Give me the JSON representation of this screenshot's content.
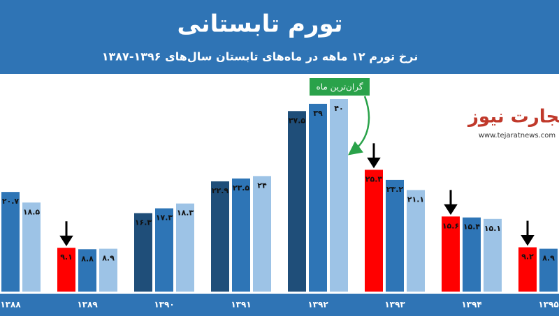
{
  "chart_data": {
    "type": "bar",
    "title": "تورم تابستانی",
    "subtitle": "نرخ تورم ۱۲ ماهه در ماه‌های تابستان سال‌های ۱۳۹۶-۱۳۸۷",
    "annotation": "گران‌ترین ماه",
    "logo": "تجارت نیوز",
    "logo_url": "www.tejaratnews.com",
    "categories": [
      "۱۳۸۸",
      "۱۳۸۹",
      "۱۳۹۰",
      "۱۳۹۱",
      "۱۳۹۲",
      "۱۳۹۳",
      "۱۳۹۴",
      "۱۳۹۵"
    ],
    "ylim": [
      0,
      45
    ],
    "series": [
      {
        "color": "#1f4e79",
        "colors": [
          null,
          "#ff0000",
          "#1f4e79",
          "#1f4e79",
          "#1f4e79",
          "#ff0000",
          "#ff0000",
          "#ff0000"
        ],
        "values": [
          null,
          9.1,
          16.3,
          22.9,
          37.5,
          25.3,
          15.6,
          9.2
        ],
        "value_labels": [
          null,
          "۹.۱",
          "۱۶.۳",
          "۲۲.۹",
          "۳۷.۵",
          "۲۵.۳",
          "۱۵.۶",
          "۹.۲"
        ]
      },
      {
        "color": "#2e75b6",
        "values": [
          20.7,
          8.8,
          17.3,
          23.5,
          39,
          23.2,
          15.4,
          8.9
        ],
        "value_labels": [
          "۲۰.۷",
          "۸.۸",
          "۱۷.۳",
          "۲۳.۵",
          "۳۹",
          "۲۳.۲",
          "۱۵.۴",
          "۸.۹"
        ]
      },
      {
        "color": "#9dc3e6",
        "values": [
          18.5,
          8.9,
          18.3,
          24,
          40,
          21.1,
          15.1,
          null
        ],
        "value_labels": [
          "۱۸.۵",
          "۸.۹",
          "۱۸.۳",
          "۲۴",
          "۴۰",
          "۲۱.۱",
          "۱۵.۱",
          null
        ]
      }
    ]
  }
}
